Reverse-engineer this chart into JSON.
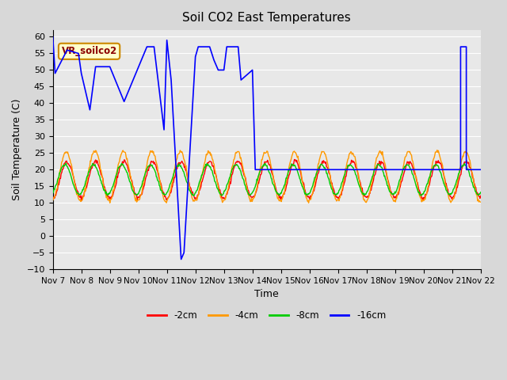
{
  "title": "Soil CO2 East Temperatures",
  "xlabel": "Time",
  "ylabel": "Soil Temperature (C)",
  "ylim": [
    -10,
    62
  ],
  "yticks": [
    -10,
    -5,
    0,
    5,
    10,
    15,
    20,
    25,
    30,
    35,
    40,
    45,
    50,
    55,
    60
  ],
  "annotation_text": "VR_soilco2",
  "colors": {
    "2cm": "#ff0000",
    "4cm": "#ff9900",
    "8cm": "#00cc00",
    "16cm": "#0000ff"
  },
  "legend_labels": [
    "-2cm",
    "-4cm",
    "-8cm",
    "-16cm"
  ],
  "bg_color": "#e8e8e8",
  "grid_color": "#ffffff",
  "blue_x": [
    0.0,
    0.08,
    0.08,
    0.5,
    0.5,
    0.9,
    0.9,
    1.0,
    1.0,
    1.3,
    1.3,
    1.5,
    1.5,
    2.0,
    2.0,
    2.5,
    2.5,
    3.3,
    3.3,
    3.55,
    3.55,
    3.9,
    3.9,
    4.0,
    4.0,
    4.15,
    4.15,
    4.5,
    4.5,
    4.6,
    4.6,
    5.0,
    5.0,
    5.1,
    5.1,
    5.5,
    5.5,
    5.65,
    5.65,
    5.8,
    5.8,
    6.0,
    6.0,
    6.1,
    6.1,
    6.5,
    6.5,
    6.6,
    6.6,
    7.0,
    7.0,
    7.1,
    7.1,
    7.5,
    14.3,
    14.3,
    14.5,
    14.5,
    15.0
  ],
  "blue_y": [
    60.0,
    49.0,
    49.0,
    56.0,
    56.0,
    55.0,
    55.0,
    49.0,
    49.0,
    38.0,
    38.0,
    51.0,
    51.0,
    51.0,
    51.0,
    40.5,
    40.5,
    57.0,
    57.0,
    57.0,
    57.0,
    32.0,
    32.0,
    59.0,
    59.0,
    47.0,
    47.0,
    -7.0,
    -7.0,
    -5.0,
    -5.0,
    54.0,
    54.0,
    57.0,
    57.0,
    57.0,
    57.0,
    53.0,
    53.0,
    50.0,
    50.0,
    50.0,
    50.0,
    57.0,
    57.0,
    57.0,
    57.0,
    47.0,
    47.0,
    50.0,
    50.0,
    20.0,
    20.0,
    20.0,
    20.0,
    57.0,
    57.0,
    20.0,
    20.0
  ]
}
